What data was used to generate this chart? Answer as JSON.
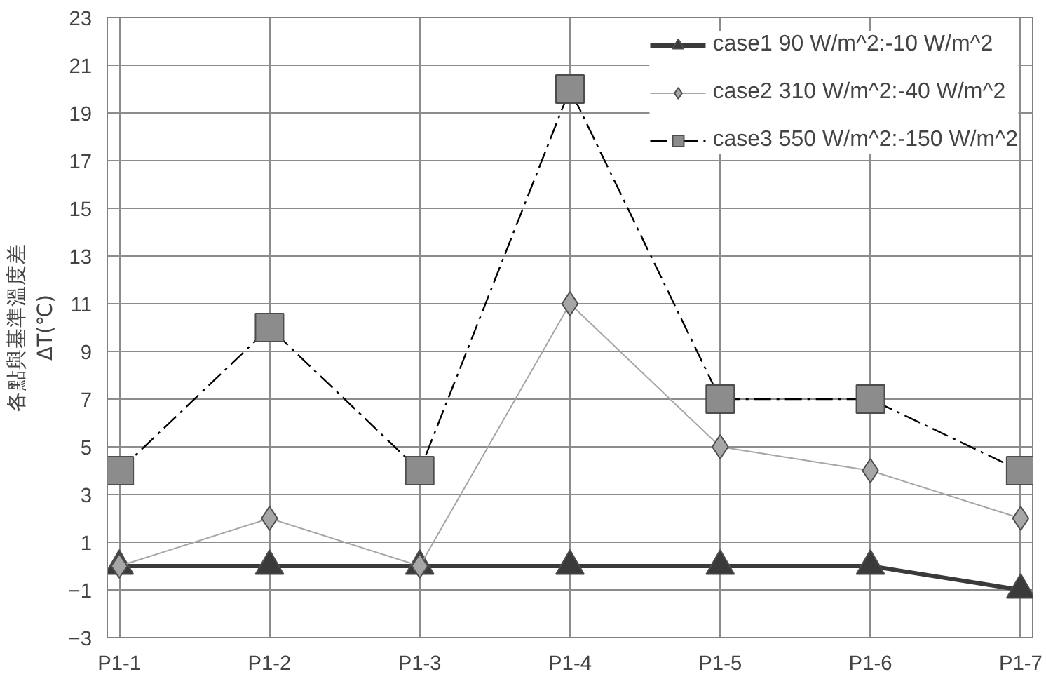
{
  "chart_data": {
    "type": "line",
    "ylabel": "各點與基準溫度差\nΔT(℃)",
    "categories": [
      "P1-1",
      "P1-2",
      "P1-3",
      "P1-4",
      "P1-5",
      "P1-6",
      "P1-7"
    ],
    "ylim": [
      -3,
      23
    ],
    "yticks": [
      -3,
      -1,
      1,
      3,
      5,
      7,
      9,
      11,
      13,
      15,
      17,
      19,
      21,
      23
    ],
    "grid": true,
    "legend": "top right",
    "series": [
      {
        "name": "case1 90 W/m^2:-10 W/m^2",
        "color": "#3a3a3a",
        "marker": "triangle",
        "line_style": "solid",
        "values": [
          0,
          0,
          0,
          0,
          0,
          0,
          -1
        ]
      },
      {
        "name": "case2 310 W/m^2:-40 W/m^2",
        "color": "#a6a6a6",
        "marker": "diamond",
        "line_style": "solid",
        "values": [
          0,
          2,
          0,
          11,
          5,
          4,
          2
        ]
      },
      {
        "name": "case3 550 W/m^2:-150 W/m^2",
        "color": "#000000",
        "marker": "square",
        "line_style": "dashdot",
        "values": [
          4,
          10,
          4,
          20,
          7,
          7,
          4
        ]
      }
    ]
  }
}
